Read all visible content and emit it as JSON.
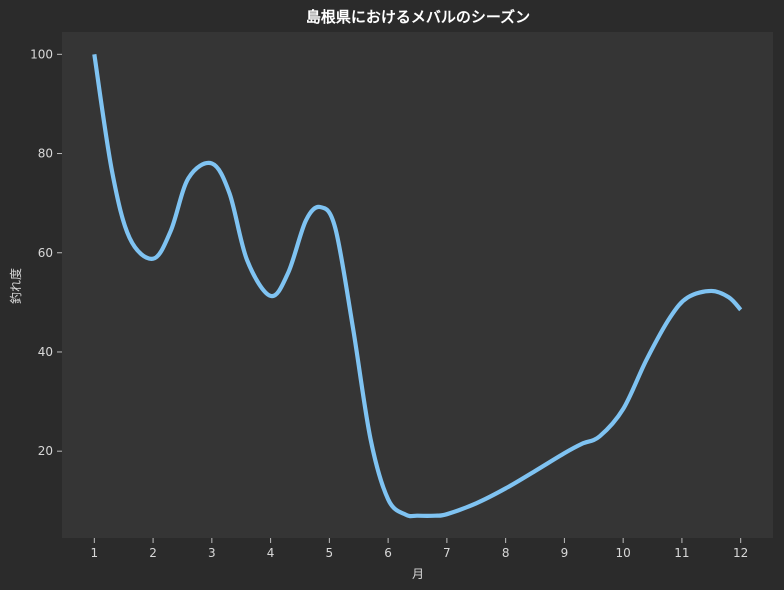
{
  "chart_data": {
    "type": "line",
    "title": "島根県におけるメバルのシーズン",
    "xlabel": "月",
    "ylabel": "釣れ度",
    "x": [
      1,
      1.3,
      1.6,
      2,
      2.3,
      2.6,
      3,
      3.3,
      3.6,
      4,
      4.3,
      4.6,
      4.85,
      5.1,
      5.4,
      5.7,
      6,
      6.3,
      6.5,
      6.8,
      7,
      7.5,
      8,
      8.5,
      9,
      9.3,
      9.6,
      10,
      10.4,
      10.8,
      11.1,
      11.5,
      11.8,
      12
    ],
    "series": [
      {
        "name": "",
        "color": "#7fc3f2",
        "values": [
          100,
          76.5,
          63,
          58.8,
          64.4,
          75,
          78,
          72,
          58.5,
          51.3,
          56,
          66.5,
          69.2,
          65,
          45,
          22.5,
          10.3,
          7.2,
          7,
          7,
          7.3,
          9.5,
          12.5,
          16,
          19.6,
          21.5,
          23,
          28.5,
          38.5,
          47,
          51,
          52.3,
          51,
          48.5
        ]
      }
    ],
    "x_ticks": [
      "1",
      "2",
      "3",
      "4",
      "5",
      "6",
      "7",
      "8",
      "9",
      "10",
      "11",
      "12"
    ],
    "y_ticks": [
      "20",
      "40",
      "60",
      "80",
      "100"
    ],
    "xlim": [
      0.45,
      12.55
    ],
    "ylim": [
      2.5,
      104.5
    ],
    "grid": false,
    "colors": {
      "figure_background": "#2b2b2b",
      "plot_background": "#353535",
      "line": "#7fc3f2",
      "text": "#d8d8d8",
      "title": "#ffffff",
      "ticks": "#bdbdbd"
    }
  }
}
